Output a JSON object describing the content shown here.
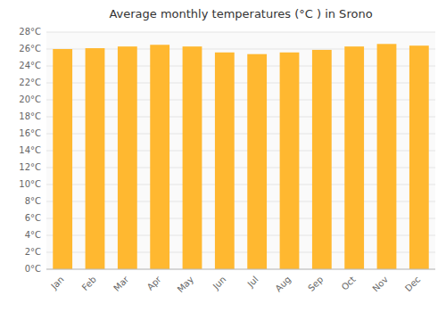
{
  "chart_data": {
    "type": "bar",
    "title": "Average monthly temperatures (°C ) in Srono",
    "categories": [
      "Jan",
      "Feb",
      "Mar",
      "Apr",
      "May",
      "Jun",
      "Jul",
      "Aug",
      "Sep",
      "Oct",
      "Nov",
      "Dec"
    ],
    "values": [
      26.0,
      26.1,
      26.3,
      26.5,
      26.3,
      25.6,
      25.4,
      25.6,
      25.9,
      26.3,
      26.6,
      26.4
    ],
    "color": "#FFB830",
    "ylim": [
      0,
      28
    ],
    "yticks": [
      {
        "value": 0,
        "label": "0°C"
      },
      {
        "value": 2,
        "label": "2°C"
      },
      {
        "value": 4,
        "label": "4°C"
      },
      {
        "value": 6,
        "label": "6°C"
      },
      {
        "value": 8,
        "label": "8°C"
      },
      {
        "value": 10,
        "label": "10°C"
      },
      {
        "value": 12,
        "label": "12°C"
      },
      {
        "value": 14,
        "label": "14°C"
      },
      {
        "value": 16,
        "label": "16°C"
      },
      {
        "value": 18,
        "label": "18°C"
      },
      {
        "value": 20,
        "label": "20°C"
      },
      {
        "value": 22,
        "label": "22°C"
      },
      {
        "value": 24,
        "label": "24°C"
      },
      {
        "value": 26,
        "label": "26°C"
      },
      {
        "value": 28,
        "label": "28°C"
      }
    ],
    "grid": true
  }
}
